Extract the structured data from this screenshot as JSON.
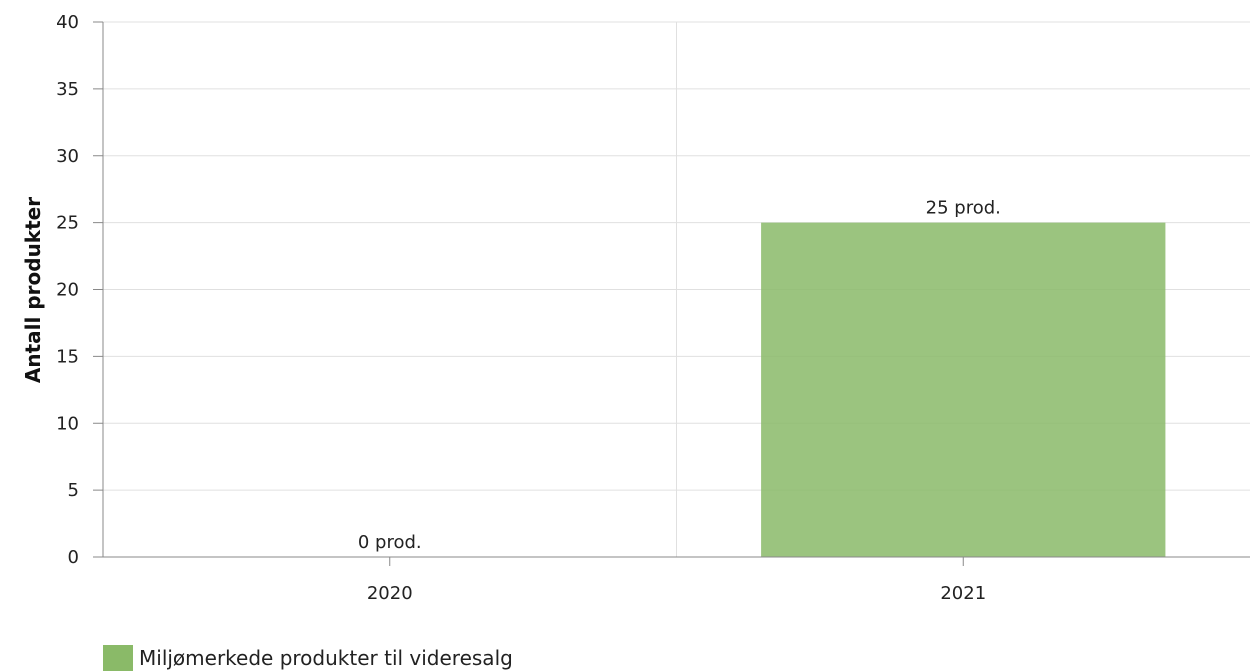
{
  "chart_data": {
    "type": "bar",
    "title": "",
    "xlabel": "",
    "ylabel": "Antall produkter",
    "categories": [
      "2020",
      "2021"
    ],
    "series": [
      {
        "name": "Miljømerkede produkter til videresalg",
        "values": [
          0,
          25
        ],
        "data_labels": [
          "0 prod.",
          "25 prod."
        ],
        "color": "#8aba68"
      }
    ],
    "ylim": [
      0,
      40
    ],
    "yticks": [
      0,
      5,
      10,
      15,
      20,
      25,
      30,
      35,
      40
    ],
    "grid": true,
    "legend_position": "bottom-left"
  }
}
